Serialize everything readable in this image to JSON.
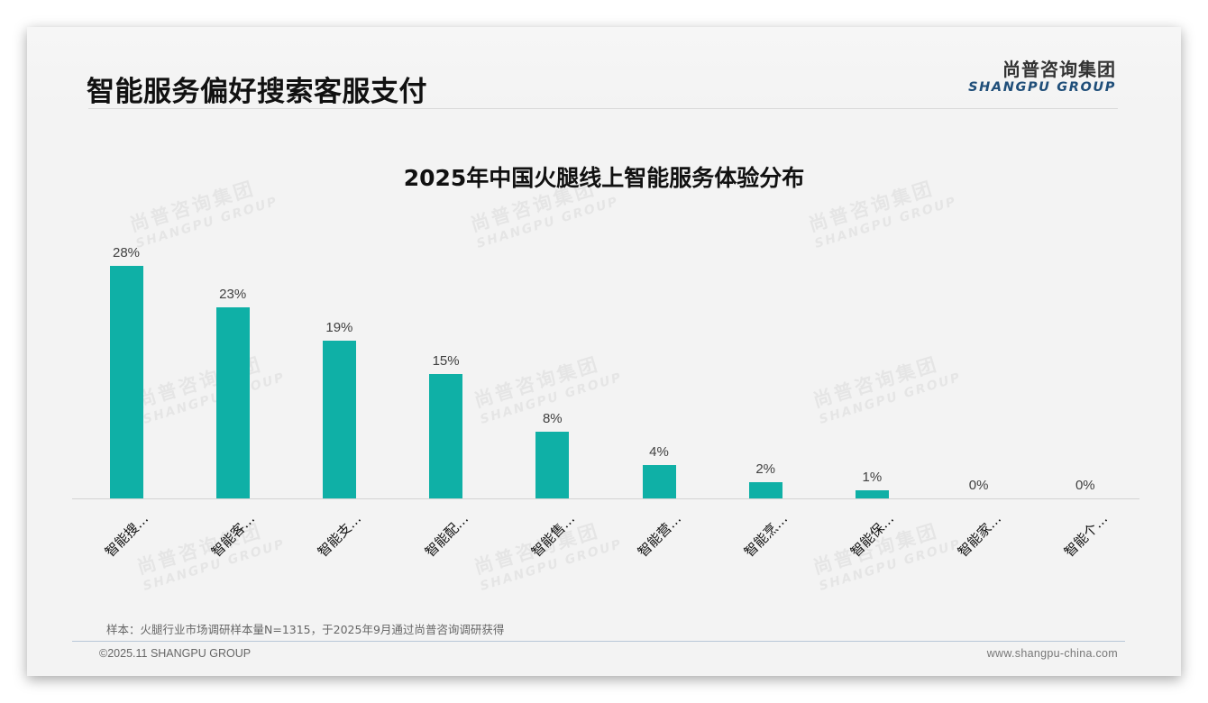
{
  "page": {
    "title": "智能服务偏好搜索客服支付",
    "logo": {
      "cn": "尚普咨询集团",
      "en": "SHANGPU GROUP"
    },
    "watermark": {
      "cn": "尚普咨询集团",
      "en": "SHANGPU GROUP"
    },
    "note": "样本：火腿行业市场调研样本量N=1315，于2025年9月通过尚普咨询调研获得",
    "footer": {
      "copyright": "©2025.11 SHANGPU GROUP",
      "website": "www.shangpu-china.com"
    }
  },
  "colors": {
    "bar": "#0fb0a6",
    "logo_en": "#1f4e79",
    "title": "#111111"
  },
  "chart_data": {
    "type": "bar",
    "title": "2025年中国火腿线上智能服务体验分布",
    "categories": [
      "智能搜…",
      "智能客…",
      "智能支…",
      "智能配…",
      "智能售…",
      "智能营…",
      "智能烹…",
      "智能保…",
      "智能家…",
      "智能个…"
    ],
    "values": [
      28,
      23,
      19,
      15,
      8,
      4,
      2,
      1,
      0,
      0
    ],
    "value_labels": [
      "28%",
      "23%",
      "19%",
      "15%",
      "8%",
      "4%",
      "2%",
      "1%",
      "0%",
      "0%"
    ],
    "unit": "%",
    "xlabel": "",
    "ylabel": "",
    "ylim": [
      0,
      28
    ],
    "grid": false,
    "legend": "none",
    "category_label_rotation": -45
  }
}
